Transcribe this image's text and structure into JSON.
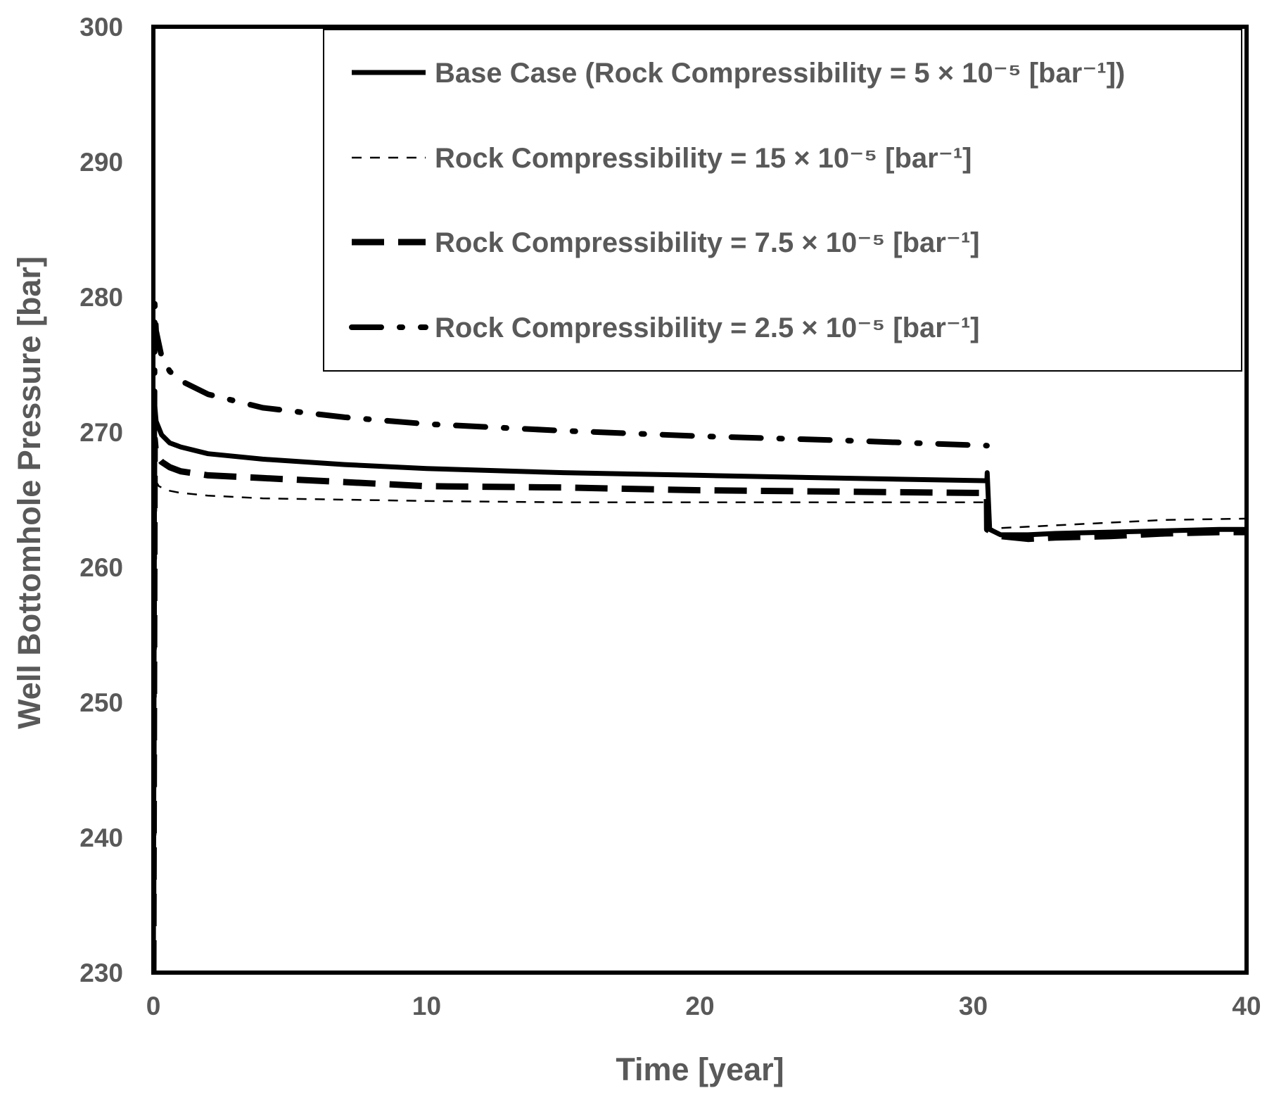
{
  "chart_data": {
    "type": "line",
    "title": "",
    "xlabel": "Time [year]",
    "ylabel": "Well Bottomhole Pressure [bar]",
    "xlim": [
      0,
      40
    ],
    "ylim": [
      230,
      300
    ],
    "x_ticks": [
      "0",
      "10",
      "20",
      "30",
      "40"
    ],
    "y_ticks": [
      "230",
      "240",
      "250",
      "260",
      "270",
      "280",
      "290",
      "300"
    ],
    "grid": false,
    "legend_position": "top-right",
    "series": [
      {
        "name": "Base Case (Rock Compressibility = 5 × 10⁻⁵ [bar⁻¹])",
        "style": "solid-thick",
        "x": [
          0,
          0.05,
          0.1,
          0.3,
          0.6,
          1,
          2,
          4,
          7,
          10,
          15,
          20,
          25,
          30.5,
          30.51,
          30.6,
          31,
          32,
          33,
          35,
          37,
          39,
          40
        ],
        "y": [
          230,
          272,
          270.8,
          269.8,
          269.2,
          268.9,
          268.4,
          268.0,
          267.6,
          267.3,
          267.0,
          266.8,
          266.6,
          266.4,
          267.0,
          262.8,
          262.4,
          262.4,
          262.5,
          262.6,
          262.7,
          262.8,
          262.8
        ]
      },
      {
        "name": "Rock Compressibility = 15 × 10⁻⁵ [bar⁻¹]",
        "style": "short-dash-thin",
        "x": [
          0,
          0.05,
          0.2,
          0.5,
          1,
          2,
          4,
          7,
          10,
          15,
          20,
          25,
          30.5,
          30.51,
          31,
          33,
          35,
          37,
          40
        ],
        "y": [
          230,
          266.5,
          266.0,
          265.7,
          265.5,
          265.3,
          265.1,
          265.0,
          264.9,
          264.8,
          264.8,
          264.8,
          264.8,
          262.8,
          262.9,
          263.1,
          263.3,
          263.5,
          263.6
        ]
      },
      {
        "name": "Rock Compressibility = 7.5 × 10⁻⁵ [bar⁻¹]",
        "style": "long-dash-thick",
        "x": [
          0,
          0.05,
          0.1,
          0.3,
          0.6,
          1,
          2,
          4,
          7,
          10,
          15,
          20,
          25,
          30,
          30.5,
          30.51,
          31,
          32,
          33,
          35,
          37,
          39,
          40
        ],
        "y": [
          230,
          269.5,
          268.3,
          267.8,
          267.4,
          267.1,
          266.8,
          266.6,
          266.3,
          266.0,
          265.9,
          265.7,
          265.6,
          265.5,
          265.5,
          262.8,
          262.3,
          262.1,
          262.2,
          262.3,
          262.5,
          262.6,
          262.6
        ]
      },
      {
        "name": "Rock Compressibility = 2.5 × 10⁻⁵ [bar⁻¹]",
        "style": "dash-dot-thick",
        "x": [
          0,
          0.05,
          0.1,
          0.3,
          0.6,
          1,
          2,
          4,
          7,
          10,
          15,
          20,
          25,
          30.5
        ],
        "y": [
          230,
          279.5,
          277.5,
          275.6,
          274.5,
          273.8,
          272.8,
          271.8,
          271.1,
          270.6,
          270.1,
          269.7,
          269.4,
          269.0
        ]
      }
    ]
  }
}
